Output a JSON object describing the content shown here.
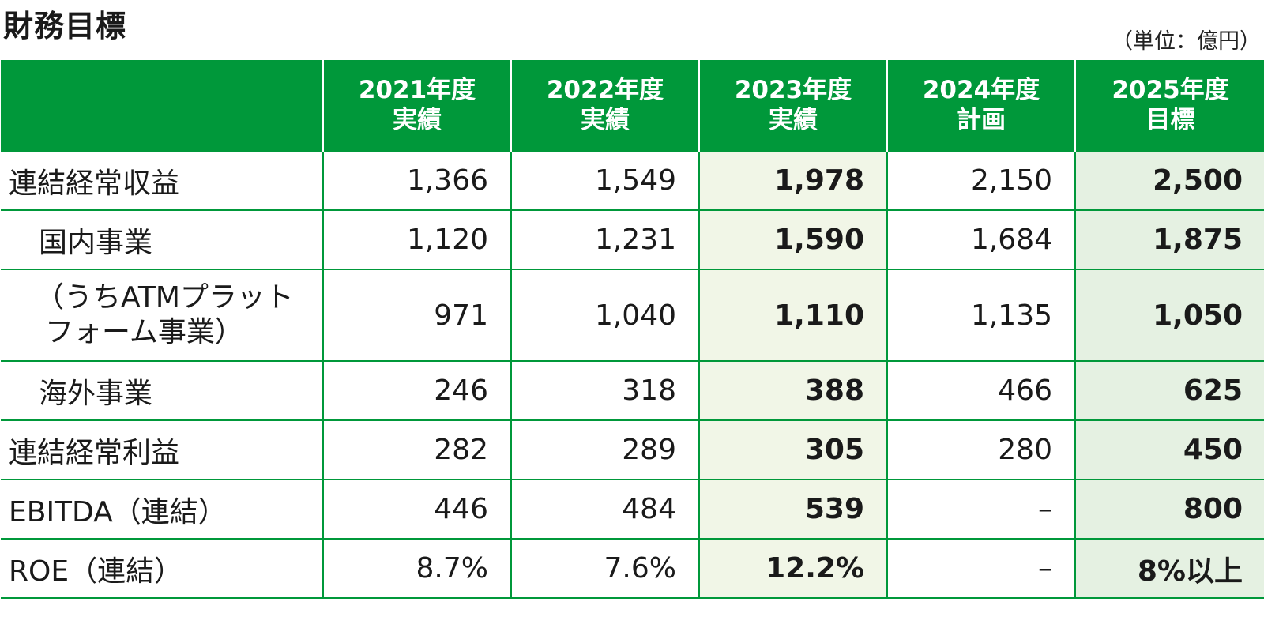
{
  "title": "財務目標",
  "unit": "（単位：億円）",
  "columns": [
    {
      "line1": "2021年度",
      "line2": "実績"
    },
    {
      "line1": "2022年度",
      "line2": "実績"
    },
    {
      "line1": "2023年度",
      "line2": "実績"
    },
    {
      "line1": "2024年度",
      "line2": "計画"
    },
    {
      "line1": "2025年度",
      "line2": "目標"
    }
  ],
  "rows": [
    {
      "label": "連結経常収益",
      "values": [
        "1,366",
        "1,549",
        "1,978",
        "2,150",
        "2,500"
      ]
    },
    {
      "label": "国内事業",
      "values": [
        "1,120",
        "1,231",
        "1,590",
        "1,684",
        "1,875"
      ]
    },
    {
      "label_line1": "（うちATMプラット",
      "label_line2": "フォーム事業）",
      "values": [
        "971",
        "1,040",
        "1,110",
        "1,135",
        "1,050"
      ]
    },
    {
      "label": "海外事業",
      "values": [
        "246",
        "318",
        "388",
        "466",
        "625"
      ]
    },
    {
      "label": "連結経常利益",
      "values": [
        "282",
        "289",
        "305",
        "280",
        "450"
      ]
    },
    {
      "label": "EBITDA（連結）",
      "values": [
        "446",
        "484",
        "539",
        "–",
        "800"
      ]
    },
    {
      "label": "ROE（連結）",
      "values": [
        "8.7%",
        "7.6%",
        "12.2%",
        "–",
        "8%以上"
      ]
    }
  ],
  "colors": {
    "header_green": "#00983a",
    "highlight_2023": "#f1f6e7",
    "highlight_2025": "#e5f1e2"
  }
}
